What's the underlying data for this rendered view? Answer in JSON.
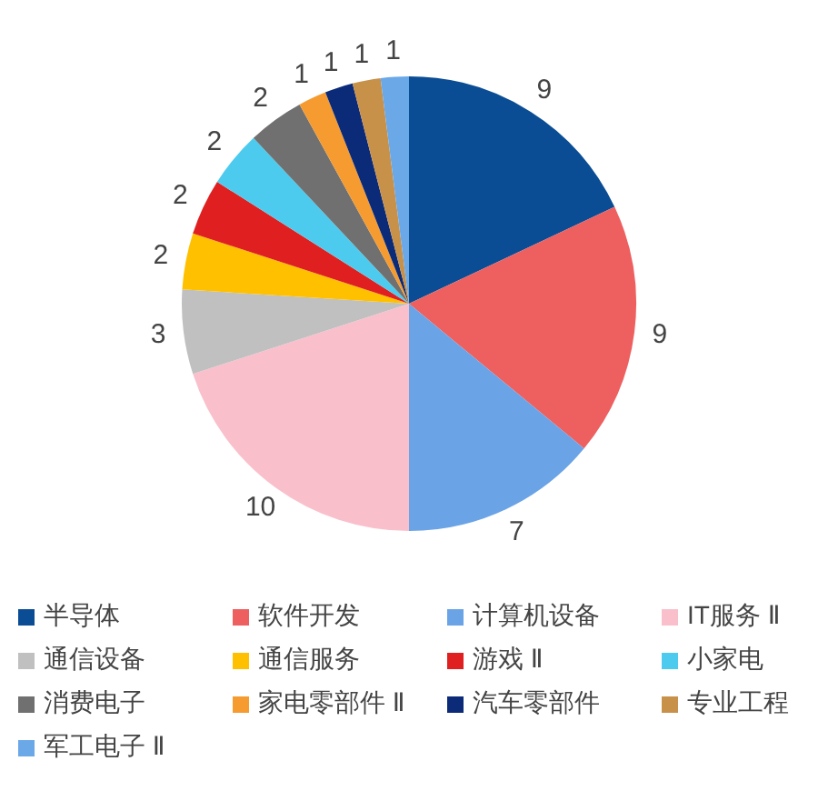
{
  "chart_data": {
    "type": "pie",
    "categories": [
      "半导体",
      "软件开发",
      "计算机设备",
      "IT服务 Ⅱ",
      "通信设备",
      "通信服务",
      "游戏 Ⅱ",
      "小家电",
      "消费电子",
      "家电零部件 Ⅱ",
      "汽车零部件",
      "专业工程",
      "军工电子 Ⅱ"
    ],
    "values": [
      9,
      9,
      7,
      10,
      3,
      2,
      2,
      2,
      2,
      1,
      1,
      1,
      1
    ],
    "colors": [
      "#0b4d94",
      "#ee5f5f",
      "#6aa3e6",
      "#f9c0cc",
      "#c0c0c0",
      "#ffc000",
      "#e02020",
      "#4dcbee",
      "#707070",
      "#f59b30",
      "#0b2a78",
      "#c8914a",
      "#6aa8e8"
    ],
    "data_labels": true,
    "legend": "bottom"
  }
}
